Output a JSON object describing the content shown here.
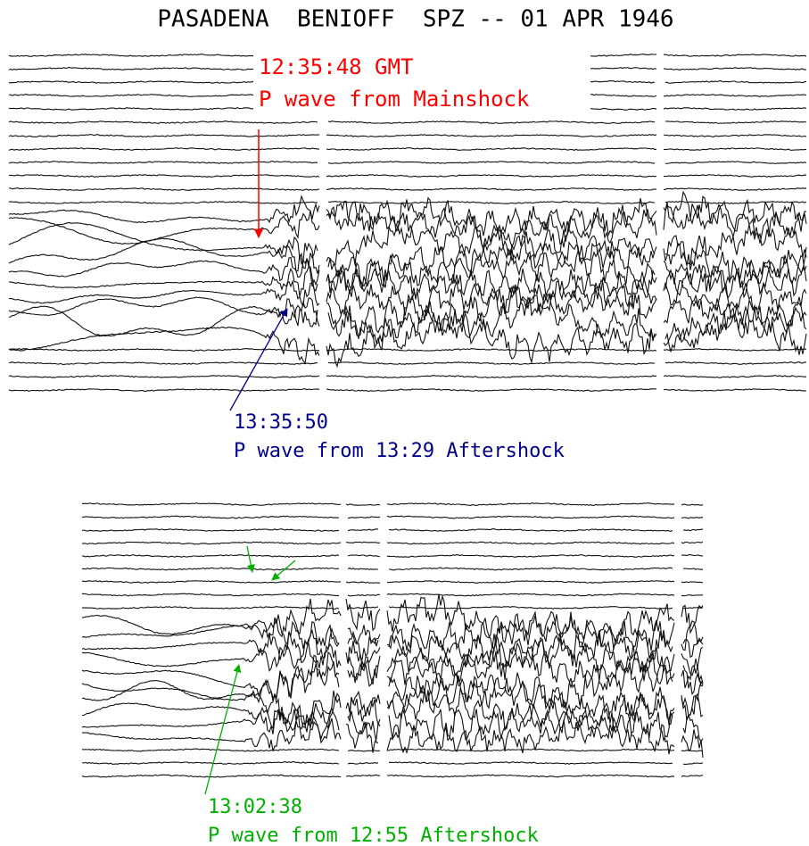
{
  "title": "PASADENA  BENIOFF  SPZ -- 01 APR 1946",
  "annotations": [
    {
      "time": "12:35:48 GMT",
      "label": "P wave from Mainshock"
    },
    {
      "time": "13:35:50",
      "label": "P wave from 13:29 Aftershock"
    },
    {
      "time": "13:02:38",
      "label": "P wave from 12:55 Aftershock"
    }
  ]
}
